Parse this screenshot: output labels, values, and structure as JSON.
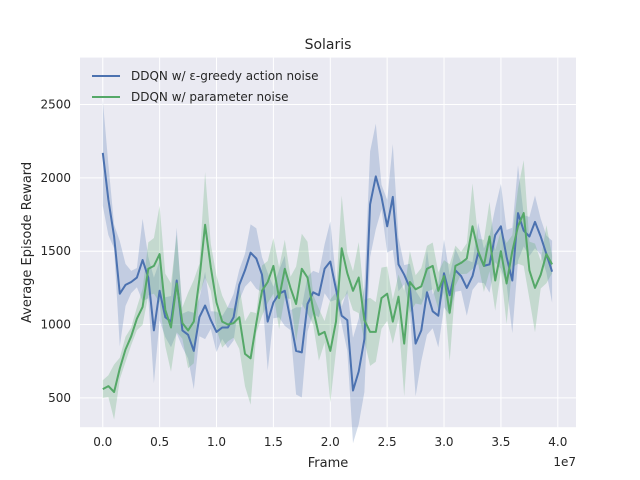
{
  "chart_data": {
    "type": "line",
    "title": "Solaris",
    "xlabel": "Frame",
    "ylabel": "Average Episode Reward",
    "x_offset_label": "1e7",
    "xlim": [
      -0.2,
      4.16
    ],
    "ylim": [
      300,
      2820
    ],
    "x_ticks": [
      0.0,
      0.5,
      1.0,
      1.5,
      2.0,
      2.5,
      3.0,
      3.5,
      4.0
    ],
    "x_tick_labels": [
      "0.0",
      "0.5",
      "1.0",
      "1.5",
      "2.0",
      "2.5",
      "3.0",
      "3.5",
      "4.0"
    ],
    "y_ticks": [
      500,
      1000,
      1500,
      2000,
      2500
    ],
    "y_tick_labels": [
      "500",
      "1000",
      "1500",
      "2000",
      "2500"
    ],
    "grid": true,
    "legend_position": "top-left",
    "x": [
      0.0,
      0.05,
      0.1,
      0.15,
      0.2,
      0.25,
      0.3,
      0.35,
      0.4,
      0.45,
      0.5,
      0.55,
      0.6,
      0.65,
      0.7,
      0.75,
      0.8,
      0.85,
      0.9,
      0.95,
      1.0,
      1.05,
      1.1,
      1.15,
      1.2,
      1.25,
      1.3,
      1.35,
      1.4,
      1.45,
      1.5,
      1.55,
      1.6,
      1.65,
      1.7,
      1.75,
      1.8,
      1.85,
      1.9,
      1.95,
      2.0,
      2.05,
      2.1,
      2.15,
      2.2,
      2.25,
      2.3,
      2.35,
      2.4,
      2.45,
      2.5,
      2.55,
      2.6,
      2.65,
      2.7,
      2.75,
      2.8,
      2.85,
      2.9,
      2.95,
      3.0,
      3.05,
      3.1,
      3.15,
      3.2,
      3.25,
      3.3,
      3.35,
      3.4,
      3.45,
      3.5,
      3.55,
      3.6,
      3.65,
      3.7,
      3.75,
      3.8,
      3.85,
      3.9,
      3.95
    ],
    "series": [
      {
        "name": "DDQN w/ ε-greedy action noise",
        "color": "#4c72b0",
        "values": [
          2170,
          1850,
          1600,
          1210,
          1270,
          1290,
          1320,
          1440,
          1320,
          960,
          1230,
          1050,
          1020,
          1300,
          960,
          930,
          820,
          1050,
          1130,
          1030,
          950,
          980,
          980,
          1050,
          1270,
          1370,
          1490,
          1450,
          1340,
          1020,
          1150,
          1210,
          1230,
          1030,
          820,
          810,
          1140,
          1220,
          1200,
          1380,
          1430,
          1240,
          1060,
          1030,
          550,
          680,
          900,
          1820,
          2010,
          1870,
          1670,
          1870,
          1410,
          1340,
          1250,
          870,
          960,
          1220,
          1090,
          1060,
          1350,
          1200,
          1370,
          1330,
          1250,
          1330,
          1490,
          1400,
          1410,
          1610,
          1670,
          1460,
          1300,
          1760,
          1640,
          1600,
          1700,
          1600,
          1480,
          1360
        ]
      },
      {
        "name": "DDQN w/ parameter noise",
        "color": "#55a868",
        "values": [
          560,
          580,
          540,
          700,
          830,
          920,
          1040,
          1120,
          1380,
          1400,
          1480,
          1100,
          980,
          1280,
          1010,
          960,
          1020,
          1310,
          1680,
          1390,
          1150,
          1020,
          1000,
          1010,
          1050,
          800,
          770,
          1010,
          1230,
          1290,
          1400,
          1180,
          1380,
          1250,
          1140,
          1380,
          1320,
          1100,
          930,
          950,
          820,
          1020,
          1520,
          1350,
          1230,
          1320,
          1030,
          950,
          950,
          1180,
          1210,
          1020,
          1190,
          870,
          1290,
          1240,
          1260,
          1380,
          1400,
          1230,
          1330,
          1080,
          1400,
          1420,
          1450,
          1670,
          1500,
          1400,
          1600,
          1300,
          1500,
          1280,
          1500,
          1670,
          1760,
          1370,
          1250,
          1340,
          1480,
          1410
        ]
      }
    ]
  }
}
